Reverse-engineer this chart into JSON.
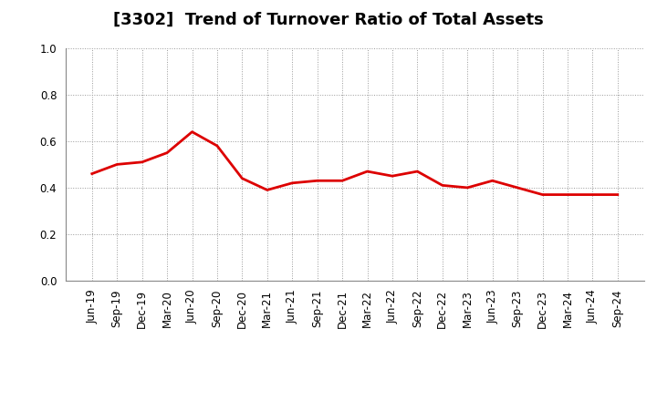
{
  "title": "[3302]  Trend of Turnover Ratio of Total Assets",
  "labels": [
    "Jun-19",
    "Sep-19",
    "Dec-19",
    "Mar-20",
    "Jun-20",
    "Sep-20",
    "Dec-20",
    "Mar-21",
    "Jun-21",
    "Sep-21",
    "Dec-21",
    "Mar-22",
    "Jun-22",
    "Sep-22",
    "Dec-22",
    "Mar-23",
    "Jun-23",
    "Sep-23",
    "Dec-23",
    "Mar-24",
    "Jun-24",
    "Sep-24"
  ],
  "values": [
    0.46,
    0.5,
    0.51,
    0.55,
    0.64,
    0.58,
    0.44,
    0.39,
    0.42,
    0.43,
    0.43,
    0.47,
    0.45,
    0.47,
    0.41,
    0.4,
    0.43,
    0.4,
    0.37,
    0.37,
    0.37,
    0.37
  ],
  "line_color": "#DD0000",
  "line_width": 2.0,
  "ylim": [
    0.0,
    1.0
  ],
  "yticks": [
    0.0,
    0.2,
    0.4,
    0.6,
    0.8,
    1.0
  ],
  "background_color": "#ffffff",
  "plot_bg_color": "#ffffff",
  "grid_color": "#999999",
  "title_fontsize": 13,
  "tick_fontsize": 8.5
}
